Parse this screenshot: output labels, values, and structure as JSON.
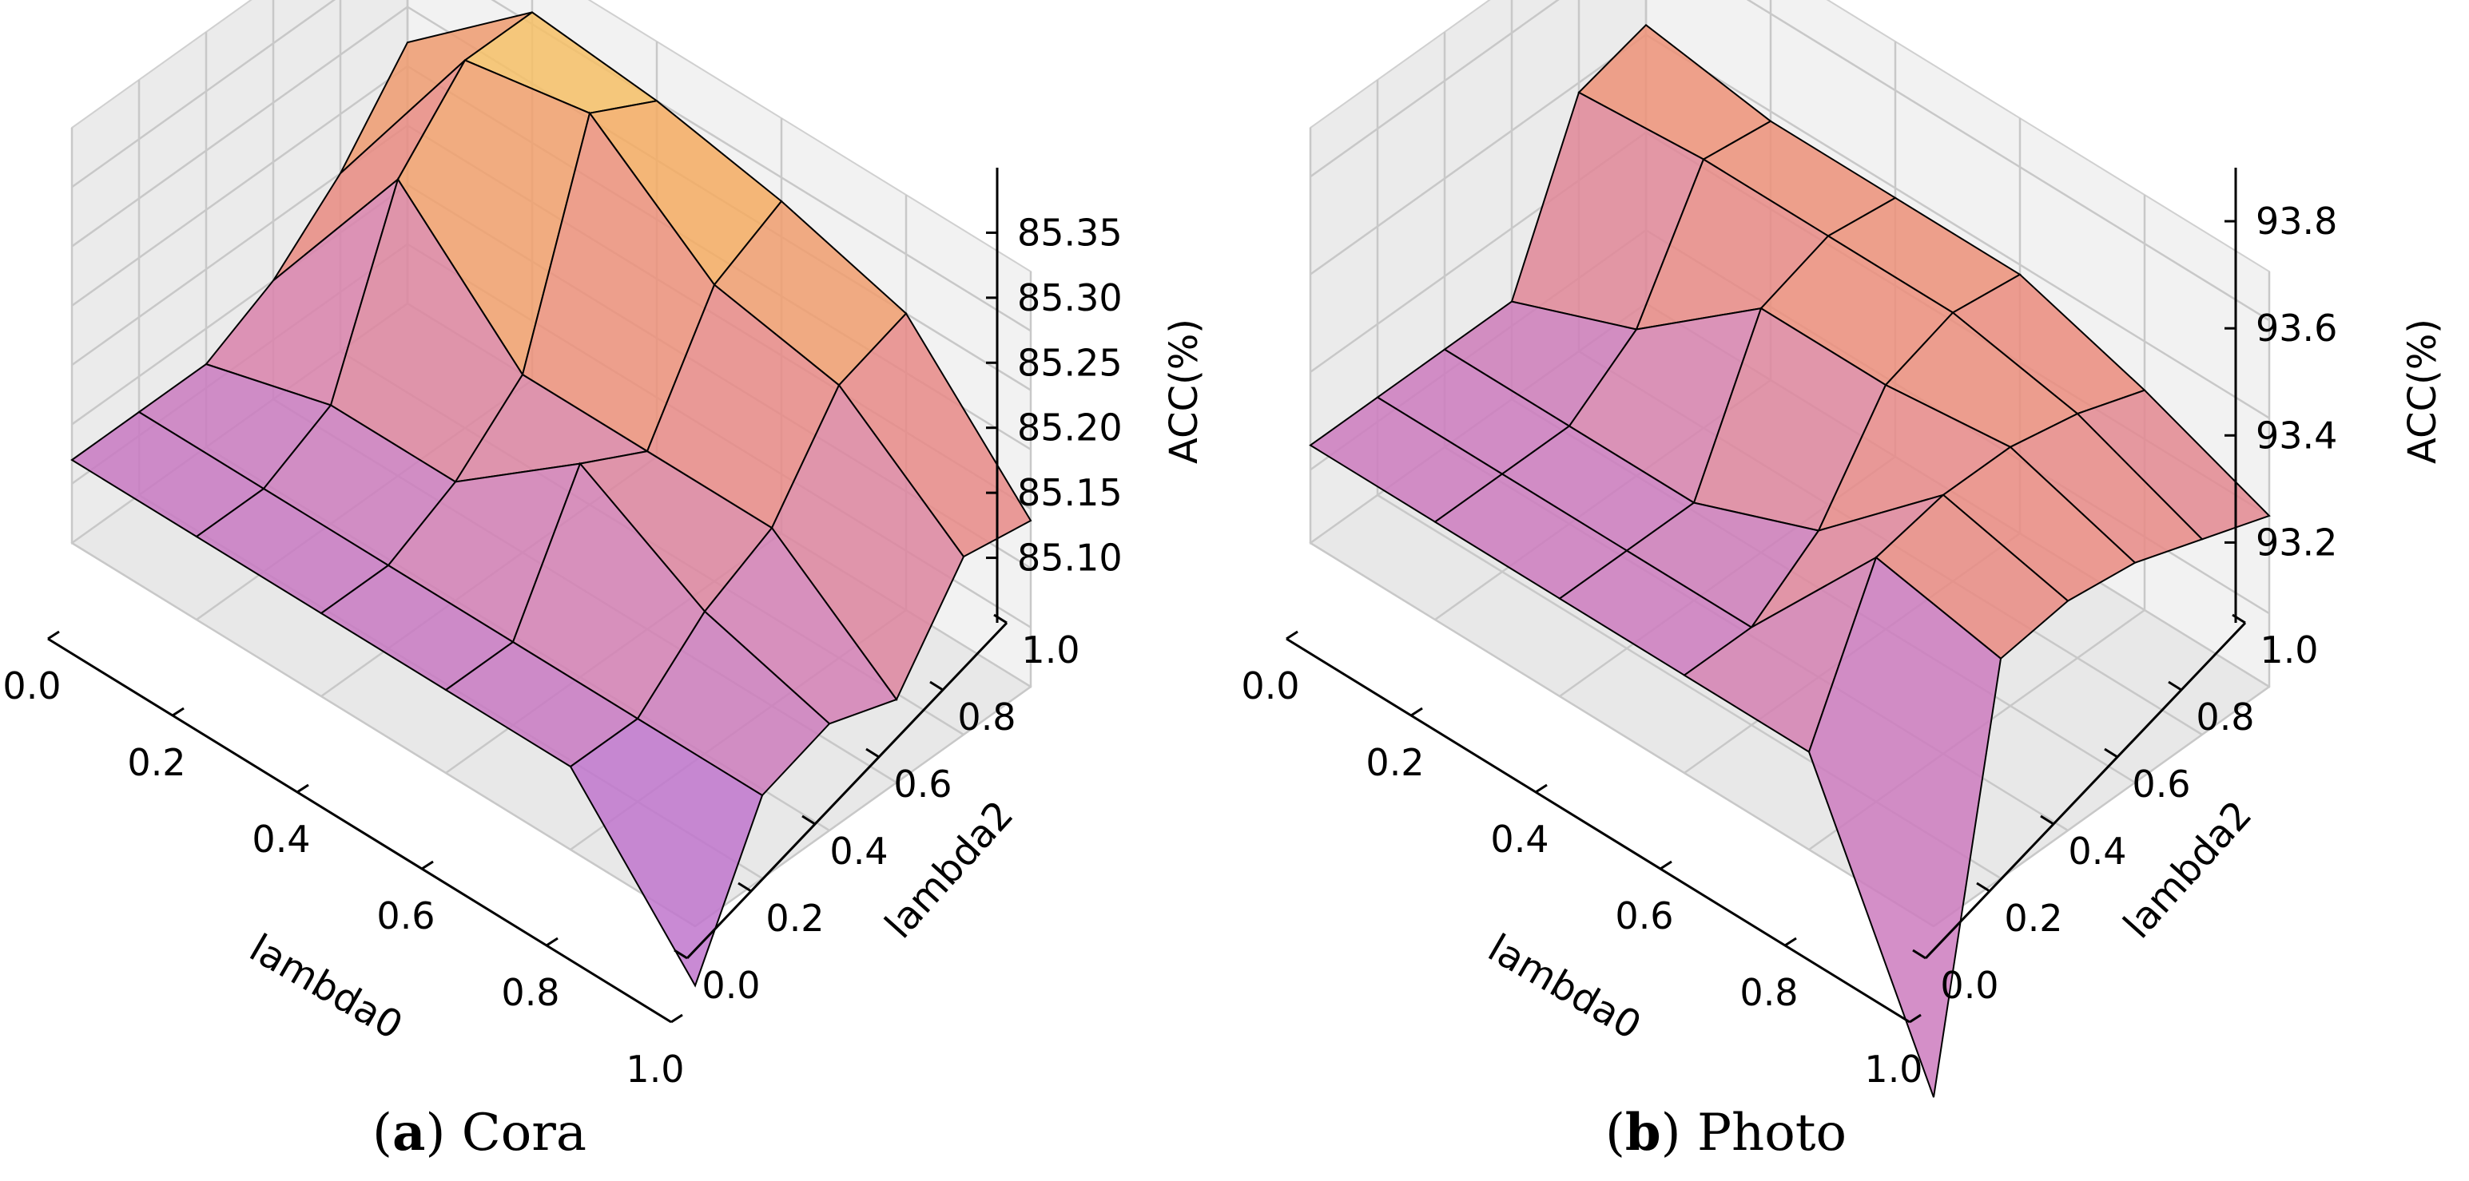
{
  "chart_data": [
    {
      "type": "surface3d",
      "caption_letter": "a",
      "caption_text": "Cora",
      "xlabel": "lambda0",
      "ylabel": "lambda2",
      "zlabel": "ACC(%)",
      "x": [
        0.0,
        0.2,
        0.4,
        0.6,
        0.8,
        1.0
      ],
      "y": [
        0.0,
        0.2,
        0.4,
        0.6,
        0.8,
        1.0
      ],
      "x_tick_labels": [
        "0.0",
        "0.2",
        "0.4",
        "0.6",
        "0.8",
        "1.0"
      ],
      "y_tick_labels": [
        "0.0",
        "0.2",
        "0.4",
        "0.6",
        "0.8",
        "1.0"
      ],
      "z_tick_labels": [
        "85.10",
        "85.15",
        "85.20",
        "85.25",
        "85.30",
        "85.35"
      ],
      "z_ticks": [
        85.1,
        85.15,
        85.2,
        85.25,
        85.3,
        85.35
      ],
      "zlim": [
        85.05,
        85.4
      ],
      "z": [
        [
          85.12,
          85.12,
          85.12,
          85.15,
          85.2,
          85.27
        ],
        [
          85.12,
          85.12,
          85.15,
          85.3,
          85.36,
          85.36
        ],
        [
          85.12,
          85.12,
          85.15,
          85.2,
          85.38,
          85.35
        ],
        [
          85.12,
          85.12,
          85.23,
          85.2,
          85.3,
          85.33
        ],
        [
          85.12,
          85.12,
          85.17,
          85.2,
          85.28,
          85.3
        ],
        [
          85.0,
          85.12,
          85.14,
          85.12,
          85.2,
          85.19
        ]
      ]
    },
    {
      "type": "surface3d",
      "caption_letter": "b",
      "caption_text": "Photo",
      "xlabel": "lambda0",
      "ylabel": "lambda2",
      "zlabel": "ACC(%)",
      "x": [
        0.0,
        0.2,
        0.4,
        0.6,
        0.8,
        1.0
      ],
      "y": [
        0.0,
        0.2,
        0.4,
        0.6,
        0.8,
        1.0
      ],
      "x_tick_labels": [
        "0.0",
        "0.2",
        "0.4",
        "0.6",
        "0.8",
        "1.0"
      ],
      "y_tick_labels": [
        "0.0",
        "0.2",
        "0.4",
        "0.6",
        "0.8",
        "1.0"
      ],
      "z_tick_labels": [
        "93.2",
        "93.4",
        "93.6",
        "93.8"
      ],
      "z_ticks": [
        93.2,
        93.4,
        93.6,
        93.8
      ],
      "zlim": [
        93.05,
        93.9
      ],
      "z": [
        [
          93.25,
          93.25,
          93.25,
          93.25,
          93.58,
          93.62
        ],
        [
          93.25,
          93.25,
          93.25,
          93.35,
          93.6,
          93.58
        ],
        [
          93.25,
          93.25,
          93.25,
          93.55,
          93.6,
          93.58
        ],
        [
          93.25,
          93.25,
          93.35,
          93.55,
          93.6,
          93.58
        ],
        [
          93.25,
          93.55,
          93.58,
          93.58,
          93.55,
          93.5
        ],
        [
          92.7,
          93.5,
          93.52,
          93.5,
          93.45,
          93.4
        ]
      ]
    }
  ]
}
